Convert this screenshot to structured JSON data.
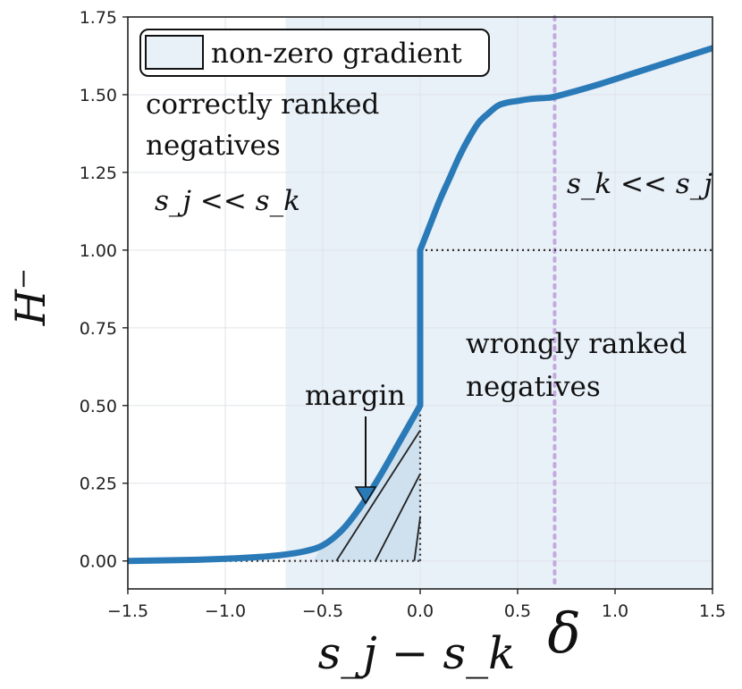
{
  "chart_data": {
    "type": "line",
    "title": "",
    "xlabel": "s_j − s_k",
    "ylabel": "H⁻",
    "xlim": [
      -1.5,
      1.5
    ],
    "ylim": [
      -0.09,
      1.75
    ],
    "x_ticks": [
      -1.5,
      -1.0,
      -0.5,
      0.0,
      0.5,
      1.0,
      1.5
    ],
    "x_tick_labels": [
      "−1.5",
      "−1.0",
      "−0.5",
      "0.0",
      "0.5",
      "1.0",
      "1.5"
    ],
    "y_ticks": [
      0.0,
      0.25,
      0.5,
      0.75,
      1.0,
      1.25,
      1.5,
      1.75
    ],
    "y_tick_labels": [
      "0.00",
      "0.25",
      "0.50",
      "0.75",
      "1.00",
      "1.25",
      "1.50",
      "1.75"
    ],
    "grid": true,
    "legend": {
      "placement": "top-left",
      "entries": [
        "non-zero gradient"
      ]
    },
    "shaded_region": {
      "x_start": -0.69,
      "x_end": 1.5,
      "color": "#e8f0f8"
    },
    "delta": {
      "x": 0.69,
      "label": "δ",
      "color": "#c5a8e0"
    },
    "colors": {
      "curve": "#2a7ab8",
      "shade": "#e8f0f8",
      "margin_fill": "#cfe0ee",
      "delta_line": "#c5a8e0",
      "dotted": "#333333"
    },
    "series": [
      {
        "x": [
          -1.5,
          -1.2,
          -1.0,
          -0.8,
          -0.7,
          -0.6,
          -0.5,
          -0.4,
          -0.3,
          -0.2,
          -0.1,
          0.0,
          0.0,
          0.05,
          0.1,
          0.15,
          0.2,
          0.25,
          0.3,
          0.35,
          0.4,
          0.45,
          0.5,
          0.55,
          0.6,
          0.65,
          0.7,
          0.9,
          1.1,
          1.3,
          1.5
        ],
        "y": [
          0.0,
          0.003,
          0.007,
          0.014,
          0.02,
          0.03,
          0.05,
          0.1,
          0.18,
          0.28,
          0.39,
          0.5,
          1.0,
          1.08,
          1.16,
          1.23,
          1.3,
          1.36,
          1.41,
          1.44,
          1.465,
          1.475,
          1.48,
          1.485,
          1.488,
          1.49,
          1.495,
          1.53,
          1.57,
          1.61,
          1.65
        ]
      }
    ],
    "annotations": {
      "margin": "margin",
      "correct_line1": "correctly ranked",
      "correct_line2": "negatives",
      "correct_math": "s_j << s_k",
      "wrong_line1": "wrongly ranked",
      "wrong_line2": "negatives",
      "wrong_math": "s_k << s_j"
    }
  }
}
